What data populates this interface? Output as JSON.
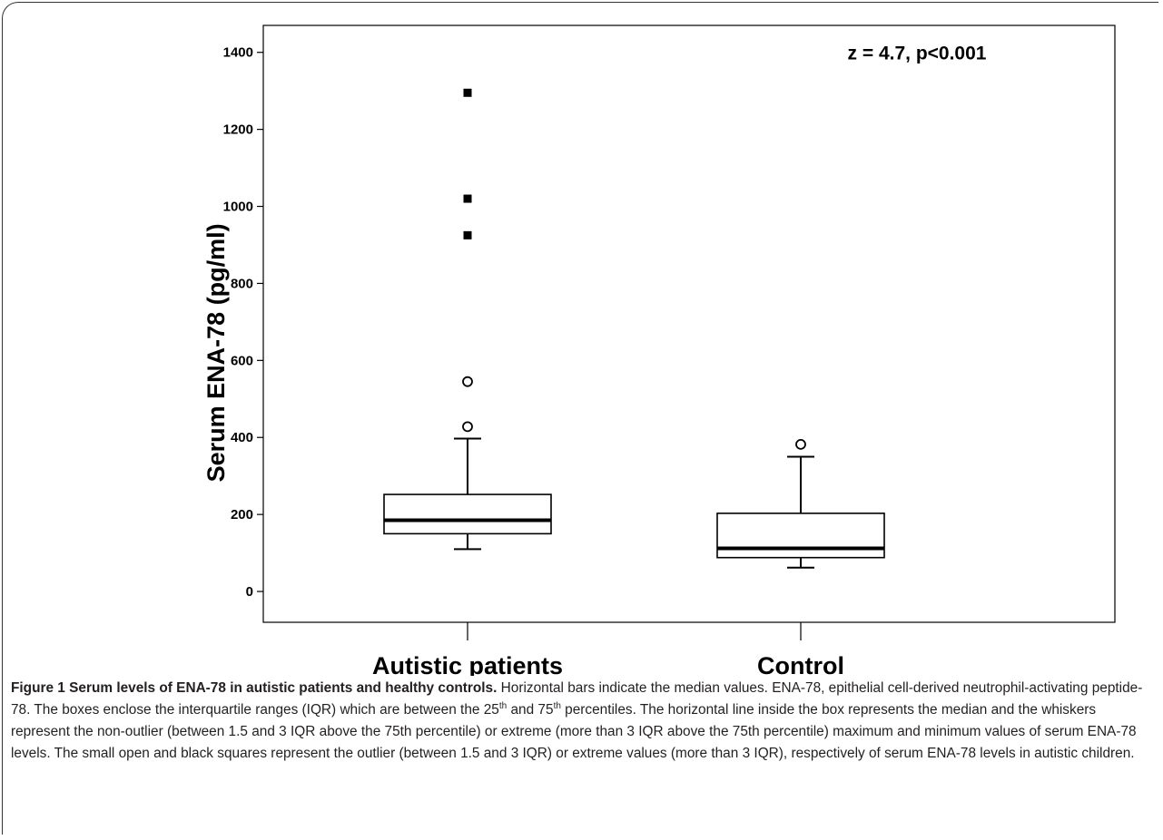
{
  "chart_data": {
    "type": "box",
    "ylabel": "Serum ENA-78 (pg/ml)",
    "xlabel": "",
    "ylim": [
      -80,
      1470
    ],
    "yticks": [
      0,
      200,
      400,
      600,
      800,
      1000,
      1200,
      1400
    ],
    "annotation": "z = 4.7, p<0.001",
    "categories": [
      "Autistic patients",
      "Control"
    ],
    "boxes": [
      {
        "category": "Autistic patients",
        "min": 110,
        "q1": 150,
        "median": 185,
        "q3": 252,
        "max": 397,
        "outliers": [
          428,
          545
        ],
        "extremes": [
          925,
          1020,
          1295
        ]
      },
      {
        "category": "Control",
        "min": 62,
        "q1": 88,
        "median": 112,
        "q3": 203,
        "max": 350,
        "outliers": [
          382
        ],
        "extremes": []
      }
    ]
  },
  "caption": {
    "title": "Figure 1 Serum levels of ENA-78 in autistic patients and healthy controls.",
    "text_1": " Horizontal bars indicate the median values. ENA-78, epithelial cell-derived neutrophil-activating peptide-78. The boxes enclose the interquartile ranges (IQR) which are between the 25",
    "sup_1": "th",
    "text_2": " and 75",
    "sup_2": "th",
    "text_3": " percentiles. The horizontal line inside the box represents the median and the whiskers represent the non-outlier (between 1.5 and 3 IQR above the 75th percentile) or extreme (more than 3 IQR above the 75th percentile) maximum and minimum values of serum ENA-78 levels. The small open and black squares represent the outlier (between 1.5 and 3 IQR) or extreme values (more than 3 IQR), respectively of serum ENA-78 levels in autistic children."
  }
}
